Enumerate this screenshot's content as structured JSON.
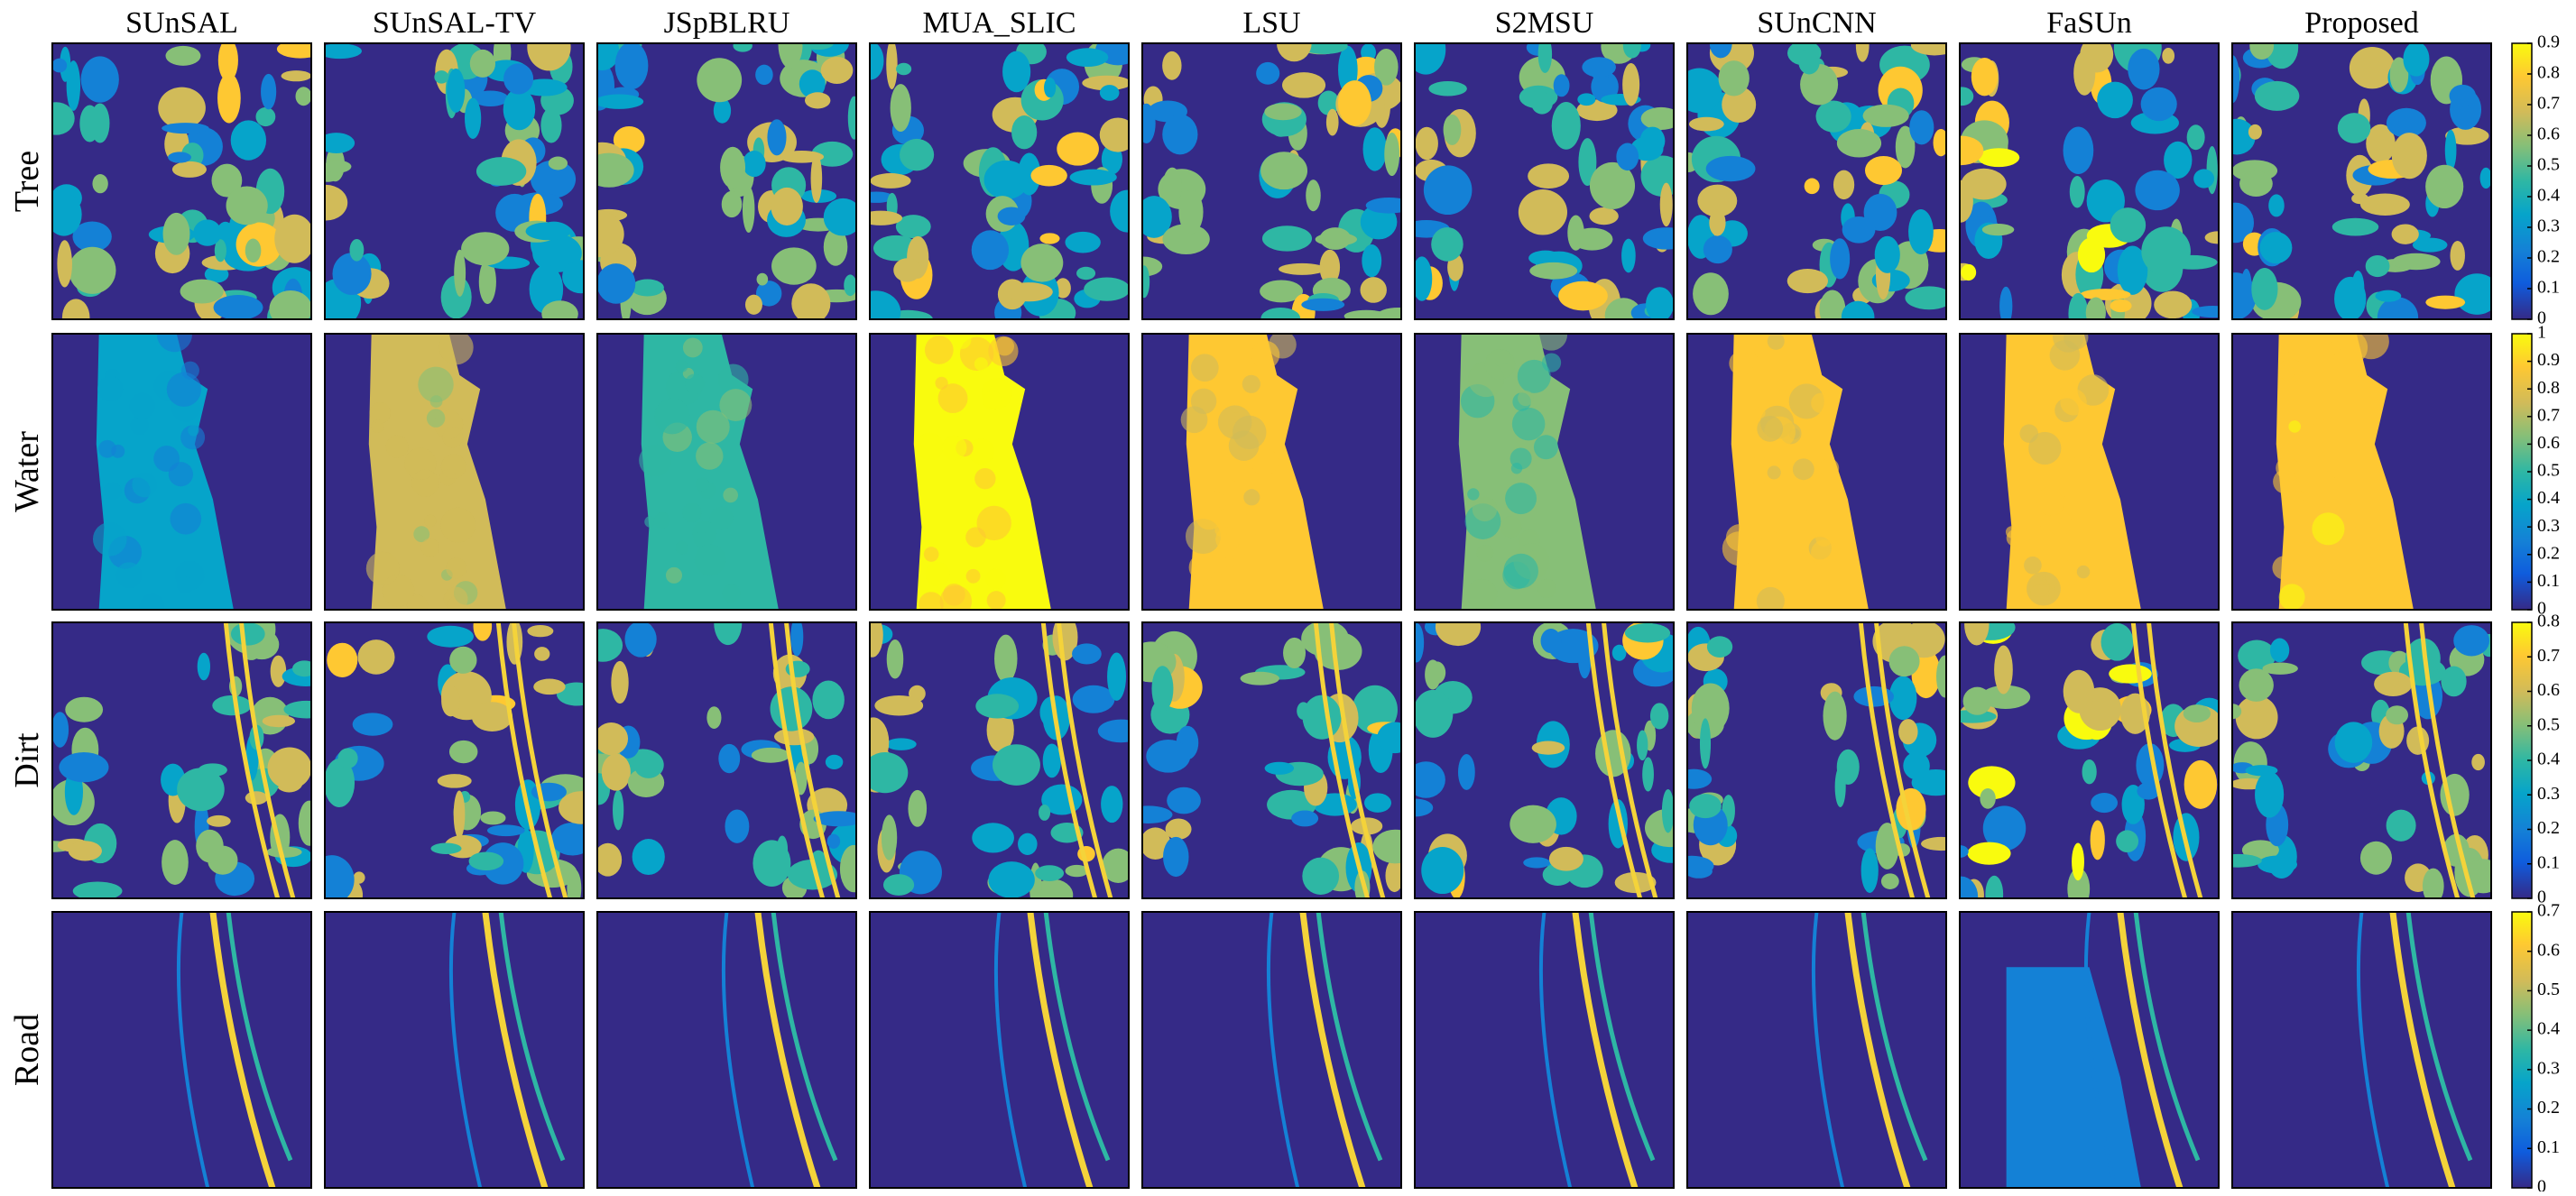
{
  "columns": [
    "SUnSAL",
    "SUnSAL-TV",
    "JSpBLRU",
    "MUA_SLIC",
    "LSU",
    "S2MSU",
    "SUnCNN",
    "FaSUn",
    "Proposed"
  ],
  "rows": [
    "Tree",
    "Water",
    "Dirt",
    "Road"
  ],
  "colorbars": [
    {
      "ylim": [
        0,
        0.9
      ],
      "yticks": [
        0,
        0.1,
        0.2,
        0.3,
        0.4,
        0.5,
        0.6,
        0.7,
        0.8,
        0.9
      ]
    },
    {
      "ylim": [
        0,
        1
      ],
      "yticks": [
        0,
        0.1,
        0.2,
        0.3,
        0.4,
        0.5,
        0.6,
        0.7,
        0.8,
        0.9,
        1
      ]
    },
    {
      "ylim": [
        0,
        0.8
      ],
      "yticks": [
        0,
        0.1,
        0.2,
        0.3,
        0.4,
        0.5,
        0.6,
        0.7,
        0.8
      ]
    },
    {
      "ylim": [
        0,
        0.7
      ],
      "yticks": [
        0,
        0.1,
        0.2,
        0.3,
        0.4,
        0.5,
        0.6,
        0.7
      ]
    }
  ]
}
